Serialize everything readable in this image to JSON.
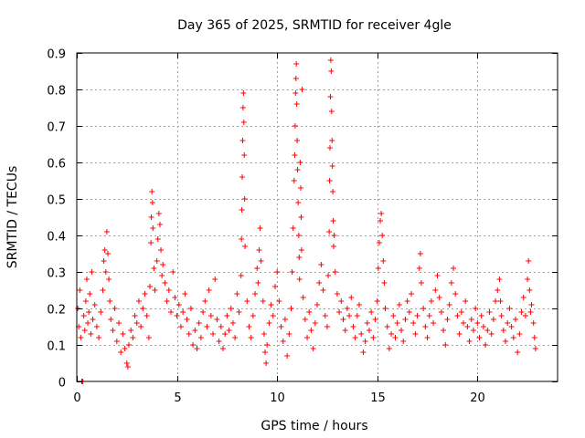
{
  "chart_data": {
    "type": "scatter",
    "title": "Day 365 of 2025, SRMTID for receiver 4gle",
    "xlabel": "GPS time / hours",
    "ylabel": "SRMTID / TECUs",
    "xlim": [
      0,
      24
    ],
    "ylim": [
      0,
      0.9
    ],
    "xticks": [
      0,
      5,
      10,
      15,
      20
    ],
    "xtick_labels": [
      "0",
      "5",
      "10",
      "15",
      "20"
    ],
    "yticks": [
      0,
      0.1,
      0.2,
      0.3,
      0.4,
      0.5,
      0.6,
      0.7,
      0.8,
      0.9
    ],
    "ytick_labels": [
      "0",
      "0.1",
      "0.2",
      "0.3",
      "0.4",
      "0.5",
      "0.6",
      "0.7",
      "0.8",
      "0.9"
    ],
    "grid": true,
    "marker": "+",
    "color": "#ff0000",
    "series": [
      {
        "name": "SRMTID",
        "points": [
          [
            0.05,
            0.2
          ],
          [
            0.1,
            0.15
          ],
          [
            0.15,
            0.25
          ],
          [
            0.2,
            0.12
          ],
          [
            0.25,
            0.0
          ],
          [
            0.3,
            0.0
          ],
          [
            0.35,
            0.18
          ],
          [
            0.4,
            0.14
          ],
          [
            0.45,
            0.22
          ],
          [
            0.5,
            0.28
          ],
          [
            0.55,
            0.16
          ],
          [
            0.6,
            0.19
          ],
          [
            0.65,
            0.24
          ],
          [
            0.7,
            0.13
          ],
          [
            0.75,
            0.3
          ],
          [
            0.8,
            0.17
          ],
          [
            0.9,
            0.21
          ],
          [
            1.0,
            0.15
          ],
          [
            1.1,
            0.12
          ],
          [
            1.2,
            0.19
          ],
          [
            1.3,
            0.25
          ],
          [
            1.35,
            0.33
          ],
          [
            1.4,
            0.36
          ],
          [
            1.45,
            0.3
          ],
          [
            1.5,
            0.41
          ],
          [
            1.55,
            0.35
          ],
          [
            1.6,
            0.28
          ],
          [
            1.65,
            0.22
          ],
          [
            1.7,
            0.17
          ],
          [
            1.8,
            0.14
          ],
          [
            1.9,
            0.2
          ],
          [
            2.0,
            0.11
          ],
          [
            2.1,
            0.16
          ],
          [
            2.2,
            0.08
          ],
          [
            2.3,
            0.13
          ],
          [
            2.4,
            0.09
          ],
          [
            2.5,
            0.05
          ],
          [
            2.55,
            0.04
          ],
          [
            2.6,
            0.1
          ],
          [
            2.7,
            0.14
          ],
          [
            2.8,
            0.12
          ],
          [
            2.9,
            0.18
          ],
          [
            3.0,
            0.16
          ],
          [
            3.1,
            0.22
          ],
          [
            3.2,
            0.15
          ],
          [
            3.3,
            0.2
          ],
          [
            3.4,
            0.24
          ],
          [
            3.5,
            0.18
          ],
          [
            3.6,
            0.12
          ],
          [
            3.65,
            0.26
          ],
          [
            3.7,
            0.38
          ],
          [
            3.72,
            0.45
          ],
          [
            3.75,
            0.52
          ],
          [
            3.78,
            0.49
          ],
          [
            3.8,
            0.42
          ],
          [
            3.85,
            0.31
          ],
          [
            3.9,
            0.25
          ],
          [
            4.0,
            0.33
          ],
          [
            4.05,
            0.39
          ],
          [
            4.1,
            0.46
          ],
          [
            4.15,
            0.43
          ],
          [
            4.2,
            0.36
          ],
          [
            4.25,
            0.29
          ],
          [
            4.3,
            0.32
          ],
          [
            4.4,
            0.27
          ],
          [
            4.5,
            0.22
          ],
          [
            4.6,
            0.25
          ],
          [
            4.7,
            0.19
          ],
          [
            4.8,
            0.3
          ],
          [
            4.9,
            0.23
          ],
          [
            5.0,
            0.18
          ],
          [
            5.1,
            0.21
          ],
          [
            5.2,
            0.15
          ],
          [
            5.3,
            0.19
          ],
          [
            5.4,
            0.24
          ],
          [
            5.5,
            0.17
          ],
          [
            5.6,
            0.13
          ],
          [
            5.7,
            0.2
          ],
          [
            5.8,
            0.1
          ],
          [
            5.9,
            0.14
          ],
          [
            6.0,
            0.09
          ],
          [
            6.1,
            0.16
          ],
          [
            6.2,
            0.12
          ],
          [
            6.3,
            0.19
          ],
          [
            6.4,
            0.22
          ],
          [
            6.5,
            0.15
          ],
          [
            6.6,
            0.25
          ],
          [
            6.7,
            0.18
          ],
          [
            6.8,
            0.13
          ],
          [
            6.9,
            0.28
          ],
          [
            7.0,
            0.17
          ],
          [
            7.1,
            0.11
          ],
          [
            7.2,
            0.15
          ],
          [
            7.3,
            0.09
          ],
          [
            7.4,
            0.13
          ],
          [
            7.5,
            0.18
          ],
          [
            7.6,
            0.14
          ],
          [
            7.7,
            0.2
          ],
          [
            7.8,
            0.16
          ],
          [
            7.9,
            0.12
          ],
          [
            8.0,
            0.24
          ],
          [
            8.1,
            0.19
          ],
          [
            8.2,
            0.29
          ],
          [
            8.22,
            0.39
          ],
          [
            8.24,
            0.47
          ],
          [
            8.26,
            0.56
          ],
          [
            8.28,
            0.66
          ],
          [
            8.3,
            0.75
          ],
          [
            8.32,
            0.79
          ],
          [
            8.34,
            0.71
          ],
          [
            8.36,
            0.62
          ],
          [
            8.38,
            0.5
          ],
          [
            8.4,
            0.37
          ],
          [
            8.5,
            0.22
          ],
          [
            8.6,
            0.15
          ],
          [
            8.7,
            0.12
          ],
          [
            8.8,
            0.18
          ],
          [
            8.9,
            0.24
          ],
          [
            9.0,
            0.31
          ],
          [
            9.05,
            0.27
          ],
          [
            9.1,
            0.36
          ],
          [
            9.15,
            0.42
          ],
          [
            9.2,
            0.33
          ],
          [
            9.3,
            0.22
          ],
          [
            9.35,
            0.13
          ],
          [
            9.4,
            0.08
          ],
          [
            9.45,
            0.05
          ],
          [
            9.5,
            0.1
          ],
          [
            9.6,
            0.16
          ],
          [
            9.7,
            0.21
          ],
          [
            9.8,
            0.18
          ],
          [
            9.9,
            0.26
          ],
          [
            10.0,
            0.3
          ],
          [
            10.1,
            0.22
          ],
          [
            10.2,
            0.15
          ],
          [
            10.3,
            0.11
          ],
          [
            10.4,
            0.17
          ],
          [
            10.5,
            0.07
          ],
          [
            10.6,
            0.13
          ],
          [
            10.7,
            0.2
          ],
          [
            10.75,
            0.3
          ],
          [
            10.8,
            0.42
          ],
          [
            10.85,
            0.55
          ],
          [
            10.88,
            0.62
          ],
          [
            10.9,
            0.7
          ],
          [
            10.92,
            0.79
          ],
          [
            10.94,
            0.83
          ],
          [
            10.96,
            0.87
          ],
          [
            10.98,
            0.76
          ],
          [
            11.0,
            0.66
          ],
          [
            11.02,
            0.58
          ],
          [
            11.05,
            0.49
          ],
          [
            11.08,
            0.4
          ],
          [
            11.1,
            0.34
          ],
          [
            11.12,
            0.28
          ],
          [
            11.15,
            0.6
          ],
          [
            11.18,
            0.53
          ],
          [
            11.2,
            0.45
          ],
          [
            11.22,
            0.36
          ],
          [
            11.25,
            0.8
          ],
          [
            11.3,
            0.23
          ],
          [
            11.4,
            0.17
          ],
          [
            11.5,
            0.12
          ],
          [
            11.6,
            0.19
          ],
          [
            11.7,
            0.14
          ],
          [
            11.8,
            0.09
          ],
          [
            11.9,
            0.16
          ],
          [
            12.0,
            0.21
          ],
          [
            12.1,
            0.27
          ],
          [
            12.2,
            0.32
          ],
          [
            12.3,
            0.25
          ],
          [
            12.4,
            0.18
          ],
          [
            12.5,
            0.15
          ],
          [
            12.55,
            0.29
          ],
          [
            12.6,
            0.41
          ],
          [
            12.62,
            0.55
          ],
          [
            12.64,
            0.64
          ],
          [
            12.66,
            0.78
          ],
          [
            12.68,
            0.88
          ],
          [
            12.7,
            0.85
          ],
          [
            12.72,
            0.74
          ],
          [
            12.74,
            0.66
          ],
          [
            12.76,
            0.59
          ],
          [
            12.78,
            0.52
          ],
          [
            12.8,
            0.44
          ],
          [
            12.82,
            0.37
          ],
          [
            12.85,
            0.4
          ],
          [
            12.9,
            0.3
          ],
          [
            13.0,
            0.24
          ],
          [
            13.1,
            0.19
          ],
          [
            13.2,
            0.22
          ],
          [
            13.3,
            0.17
          ],
          [
            13.4,
            0.14
          ],
          [
            13.5,
            0.2
          ],
          [
            13.6,
            0.18
          ],
          [
            13.7,
            0.23
          ],
          [
            13.8,
            0.15
          ],
          [
            13.9,
            0.12
          ],
          [
            14.0,
            0.18
          ],
          [
            14.1,
            0.21
          ],
          [
            14.2,
            0.13
          ],
          [
            14.3,
            0.08
          ],
          [
            14.4,
            0.11
          ],
          [
            14.5,
            0.16
          ],
          [
            14.6,
            0.14
          ],
          [
            14.7,
            0.19
          ],
          [
            14.8,
            0.12
          ],
          [
            14.9,
            0.17
          ],
          [
            15.0,
            0.22
          ],
          [
            15.05,
            0.31
          ],
          [
            15.1,
            0.38
          ],
          [
            15.15,
            0.44
          ],
          [
            15.2,
            0.46
          ],
          [
            15.25,
            0.4
          ],
          [
            15.3,
            0.33
          ],
          [
            15.35,
            0.27
          ],
          [
            15.4,
            0.2
          ],
          [
            15.5,
            0.15
          ],
          [
            15.6,
            0.09
          ],
          [
            15.7,
            0.13
          ],
          [
            15.8,
            0.18
          ],
          [
            15.9,
            0.12
          ],
          [
            16.0,
            0.16
          ],
          [
            16.1,
            0.21
          ],
          [
            16.2,
            0.14
          ],
          [
            16.3,
            0.11
          ],
          [
            16.4,
            0.17
          ],
          [
            16.5,
            0.22
          ],
          [
            16.6,
            0.19
          ],
          [
            16.7,
            0.24
          ],
          [
            16.8,
            0.16
          ],
          [
            16.9,
            0.13
          ],
          [
            17.0,
            0.18
          ],
          [
            17.1,
            0.31
          ],
          [
            17.15,
            0.35
          ],
          [
            17.2,
            0.27
          ],
          [
            17.3,
            0.2
          ],
          [
            17.4,
            0.15
          ],
          [
            17.5,
            0.12
          ],
          [
            17.6,
            0.18
          ],
          [
            17.7,
            0.22
          ],
          [
            17.8,
            0.16
          ],
          [
            17.9,
            0.25
          ],
          [
            18.0,
            0.29
          ],
          [
            18.1,
            0.23
          ],
          [
            18.2,
            0.19
          ],
          [
            18.3,
            0.14
          ],
          [
            18.4,
            0.1
          ],
          [
            18.5,
            0.17
          ],
          [
            18.6,
            0.21
          ],
          [
            18.7,
            0.27
          ],
          [
            18.8,
            0.31
          ],
          [
            18.9,
            0.24
          ],
          [
            19.0,
            0.18
          ],
          [
            19.1,
            0.13
          ],
          [
            19.2,
            0.19
          ],
          [
            19.3,
            0.16
          ],
          [
            19.4,
            0.22
          ],
          [
            19.5,
            0.15
          ],
          [
            19.6,
            0.11
          ],
          [
            19.7,
            0.17
          ],
          [
            19.8,
            0.14
          ],
          [
            19.9,
            0.2
          ],
          [
            20.0,
            0.16
          ],
          [
            20.1,
            0.12
          ],
          [
            20.2,
            0.18
          ],
          [
            20.3,
            0.15
          ],
          [
            20.4,
            0.1
          ],
          [
            20.5,
            0.14
          ],
          [
            20.6,
            0.19
          ],
          [
            20.7,
            0.13
          ],
          [
            20.8,
            0.17
          ],
          [
            20.9,
            0.22
          ],
          [
            21.0,
            0.25
          ],
          [
            21.1,
            0.28
          ],
          [
            21.15,
            0.22
          ],
          [
            21.2,
            0.18
          ],
          [
            21.3,
            0.14
          ],
          [
            21.4,
            0.11
          ],
          [
            21.5,
            0.16
          ],
          [
            21.6,
            0.2
          ],
          [
            21.7,
            0.15
          ],
          [
            21.8,
            0.12
          ],
          [
            21.9,
            0.17
          ],
          [
            22.0,
            0.08
          ],
          [
            22.1,
            0.13
          ],
          [
            22.2,
            0.19
          ],
          [
            22.3,
            0.23
          ],
          [
            22.4,
            0.18
          ],
          [
            22.5,
            0.28
          ],
          [
            22.55,
            0.33
          ],
          [
            22.6,
            0.25
          ],
          [
            22.65,
            0.19
          ],
          [
            22.7,
            0.21
          ],
          [
            22.8,
            0.16
          ],
          [
            22.85,
            0.12
          ],
          [
            22.9,
            0.09
          ]
        ]
      }
    ]
  }
}
